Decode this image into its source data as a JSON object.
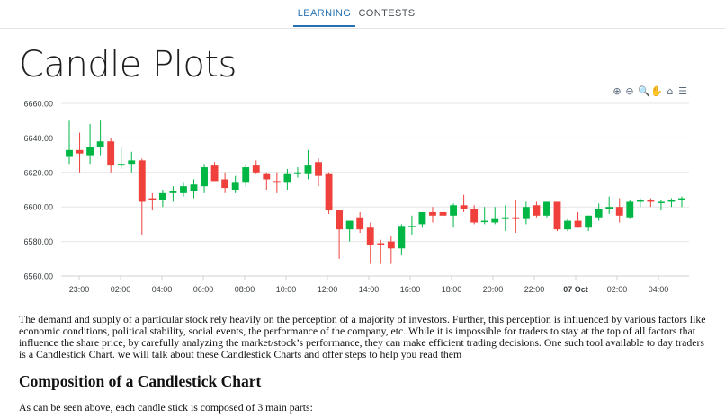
{
  "nav": {
    "tabs": [
      {
        "label": "LEARNING"
      },
      {
        "label": "CONTESTS"
      }
    ]
  },
  "page": {
    "title": "Candle Plots"
  },
  "toolbar": {
    "icons": [
      {
        "name": "zoom-in-icon",
        "glyph": "⊕"
      },
      {
        "name": "zoom-out-icon",
        "glyph": "⊖"
      },
      {
        "name": "selection-zoom-icon",
        "glyph": "🔍"
      },
      {
        "name": "pan-hand-icon",
        "glyph": "✋"
      },
      {
        "name": "reset-home-icon",
        "glyph": "⌂"
      },
      {
        "name": "menu-icon",
        "glyph": "☰"
      }
    ]
  },
  "chart_data": {
    "type": "candlestick",
    "title": "",
    "xlabel": "",
    "ylabel": "",
    "ylim": [
      6560,
      6660
    ],
    "y_ticks": [
      "6660.00",
      "6640.00",
      "6620.00",
      "6600.00",
      "6580.00",
      "6560.00"
    ],
    "x_ticks": [
      "23:00",
      "02:00",
      "04:00",
      "06:00",
      "08:00",
      "10:00",
      "12:00",
      "14:00",
      "16:00",
      "18:00",
      "20:00",
      "22:00",
      "07 Oct",
      "02:00",
      "04:00"
    ],
    "grid": true,
    "colors": {
      "up": "#00b746",
      "down": "#ef403c",
      "grid": "#e6e6e6",
      "label": "#373d3f"
    },
    "candles": [
      {
        "o": 6629,
        "h": 6650,
        "l": 6625,
        "c": 6633
      },
      {
        "o": 6633,
        "h": 6643,
        "l": 6620,
        "c": 6631
      },
      {
        "o": 6630,
        "h": 6648,
        "l": 6625,
        "c": 6635
      },
      {
        "o": 6635,
        "h": 6650,
        "l": 6630,
        "c": 6638
      },
      {
        "o": 6638,
        "h": 6640,
        "l": 6620,
        "c": 6624
      },
      {
        "o": 6624,
        "h": 6635,
        "l": 6622,
        "c": 6625
      },
      {
        "o": 6625,
        "h": 6632,
        "l": 6620,
        "c": 6627
      },
      {
        "o": 6627,
        "h": 6628,
        "l": 6584,
        "c": 6603
      },
      {
        "o": 6605,
        "h": 6608,
        "l": 6598,
        "c": 6604
      },
      {
        "o": 6604,
        "h": 6610,
        "l": 6600,
        "c": 6608
      },
      {
        "o": 6608,
        "h": 6612,
        "l": 6603,
        "c": 6609
      },
      {
        "o": 6608,
        "h": 6614,
        "l": 6606,
        "c": 6612
      },
      {
        "o": 6609,
        "h": 6616,
        "l": 6605,
        "c": 6613
      },
      {
        "o": 6612,
        "h": 6625,
        "l": 6608,
        "c": 6623
      },
      {
        "o": 6624,
        "h": 6626,
        "l": 6615,
        "c": 6615
      },
      {
        "o": 6616,
        "h": 6620,
        "l": 6608,
        "c": 6611
      },
      {
        "o": 6610,
        "h": 6618,
        "l": 6608,
        "c": 6614
      },
      {
        "o": 6614,
        "h": 6625,
        "l": 6612,
        "c": 6623
      },
      {
        "o": 6624,
        "h": 6627,
        "l": 6619,
        "c": 6620
      },
      {
        "o": 6619,
        "h": 6620,
        "l": 6610,
        "c": 6616
      },
      {
        "o": 6615,
        "h": 6620,
        "l": 6608,
        "c": 6614
      },
      {
        "o": 6614,
        "h": 6622,
        "l": 6610,
        "c": 6619
      },
      {
        "o": 6619,
        "h": 6623,
        "l": 6617,
        "c": 6620
      },
      {
        "o": 6619,
        "h": 6633,
        "l": 6616,
        "c": 6624
      },
      {
        "o": 6626,
        "h": 6628,
        "l": 6612,
        "c": 6618
      },
      {
        "o": 6619,
        "h": 6620,
        "l": 6596,
        "c": 6598
      },
      {
        "o": 6598,
        "h": 6598,
        "l": 6570,
        "c": 6587
      },
      {
        "o": 6587,
        "h": 6592,
        "l": 6580,
        "c": 6592
      },
      {
        "o": 6594,
        "h": 6597,
        "l": 6585,
        "c": 6587
      },
      {
        "o": 6588,
        "h": 6591,
        "l": 6567,
        "c": 6578
      },
      {
        "o": 6579,
        "h": 6581,
        "l": 6567,
        "c": 6578
      },
      {
        "o": 6580,
        "h": 6583,
        "l": 6567,
        "c": 6576
      },
      {
        "o": 6576,
        "h": 6590,
        "l": 6572,
        "c": 6589
      },
      {
        "o": 6589,
        "h": 6595,
        "l": 6584,
        "c": 6589
      },
      {
        "o": 6590,
        "h": 6597,
        "l": 6588,
        "c": 6597
      },
      {
        "o": 6597,
        "h": 6600,
        "l": 6591,
        "c": 6595
      },
      {
        "o": 6597,
        "h": 6598,
        "l": 6592,
        "c": 6595
      },
      {
        "o": 6595,
        "h": 6602,
        "l": 6588,
        "c": 6601
      },
      {
        "o": 6601,
        "h": 6607,
        "l": 6597,
        "c": 6599
      },
      {
        "o": 6599,
        "h": 6601,
        "l": 6590,
        "c": 6591
      },
      {
        "o": 6592,
        "h": 6600,
        "l": 6590,
        "c": 6592
      },
      {
        "o": 6591,
        "h": 6600,
        "l": 6590,
        "c": 6593
      },
      {
        "o": 6593,
        "h": 6601,
        "l": 6586,
        "c": 6594
      },
      {
        "o": 6594,
        "h": 6604,
        "l": 6585,
        "c": 6593
      },
      {
        "o": 6593,
        "h": 6603,
        "l": 6590,
        "c": 6600
      },
      {
        "o": 6601,
        "h": 6603,
        "l": 6594,
        "c": 6595
      },
      {
        "o": 6595,
        "h": 6603,
        "l": 6594,
        "c": 6603
      },
      {
        "o": 6603,
        "h": 6603,
        "l": 6586,
        "c": 6587
      },
      {
        "o": 6587,
        "h": 6593,
        "l": 6586,
        "c": 6592
      },
      {
        "o": 6592,
        "h": 6597,
        "l": 6588,
        "c": 6588
      },
      {
        "o": 6588,
        "h": 6595,
        "l": 6586,
        "c": 6595
      },
      {
        "o": 6594,
        "h": 6602,
        "l": 6592,
        "c": 6599
      },
      {
        "o": 6599,
        "h": 6606,
        "l": 6596,
        "c": 6600
      },
      {
        "o": 6600,
        "h": 6605,
        "l": 6591,
        "c": 6595
      },
      {
        "o": 6594,
        "h": 6604,
        "l": 6593,
        "c": 6603
      },
      {
        "o": 6603,
        "h": 6605,
        "l": 6600,
        "c": 6604
      },
      {
        "o": 6604,
        "h": 6605,
        "l": 6600,
        "c": 6603
      },
      {
        "o": 6603,
        "h": 6604,
        "l": 6598,
        "c": 6603
      },
      {
        "o": 6603,
        "h": 6605,
        "l": 6600,
        "c": 6604
      },
      {
        "o": 6604,
        "h": 6606,
        "l": 6600,
        "c": 6605
      }
    ]
  },
  "article": {
    "intro": "The demand and supply of a particular stock rely heavily on the perception of a majority of investors. Further, this perception is influenced by various factors like economic conditions, political stability, social events, the performance of the company, etc. While it is impossible for traders to stay at the top of all factors that influence the share price, by carefully analyzing the market/stock’s performance, they can make efficient trading decisions. One such tool available to day traders is a Candlestick Chart. we will talk about these Candlestick Charts and offer steps to help you read them",
    "section_heading": "Composition of a Candlestick Chart",
    "section_text": "As can be seen above, each candle stick is composed of 3 main parts:"
  }
}
